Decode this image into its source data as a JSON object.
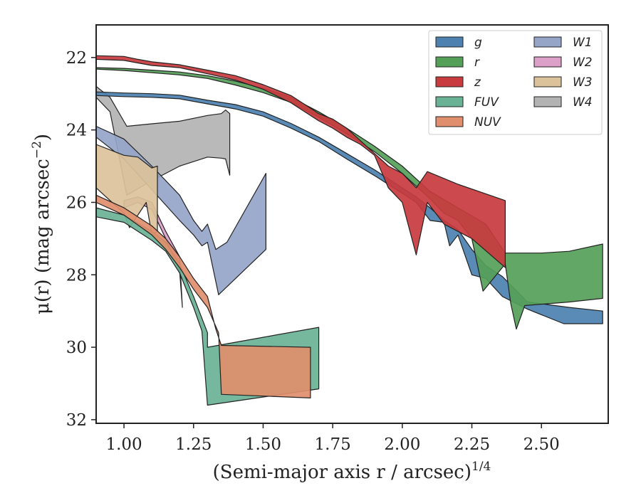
{
  "chart_data": {
    "type": "area",
    "xlabel": "(Semi-major axis r / arcsec)",
    "xlabel_superscript": "1/4",
    "ylabel": "μ(r) (mag arcsec",
    "ylabel_superscript": "−2",
    "ylabel_close": ")",
    "xlim": [
      0.9,
      2.74
    ],
    "ylim": [
      32.1,
      21.1
    ],
    "y_inverted": true,
    "grid": false,
    "legend_position": "top-right",
    "legend_columns": 2,
    "xticks": [
      1.0,
      1.25,
      1.5,
      1.75,
      2.0,
      2.25,
      2.5
    ],
    "xtick_labels": [
      "1.00",
      "1.25",
      "1.50",
      "1.75",
      "2.00",
      "2.25",
      "2.50"
    ],
    "yticks": [
      22,
      24,
      26,
      28,
      30,
      32
    ],
    "ytick_labels": [
      "22",
      "24",
      "26",
      "28",
      "30",
      "32"
    ],
    "series": [
      {
        "name": "W4",
        "color": "#b3b3b3",
        "upper": [
          [
            0.9,
            22.8
          ],
          [
            0.95,
            23.1
          ],
          [
            1.01,
            23.9
          ],
          [
            1.1,
            23.83
          ],
          [
            1.2,
            23.76
          ],
          [
            1.3,
            23.6
          ],
          [
            1.35,
            23.55
          ],
          [
            1.365,
            23.45
          ],
          [
            1.38,
            23.55
          ]
        ],
        "lower": [
          [
            0.9,
            23.1
          ],
          [
            0.95,
            23.5
          ],
          [
            1.01,
            25.8
          ],
          [
            1.1,
            25.4
          ],
          [
            1.2,
            25.0
          ],
          [
            1.3,
            24.75
          ],
          [
            1.35,
            24.78
          ],
          [
            1.365,
            24.8
          ],
          [
            1.38,
            25.25
          ]
        ]
      },
      {
        "name": "g",
        "color": "#4c81b0",
        "upper": [
          [
            0.9,
            22.95
          ],
          [
            1.0,
            22.98
          ],
          [
            1.1,
            23.0
          ],
          [
            1.2,
            23.04
          ],
          [
            1.3,
            23.18
          ],
          [
            1.4,
            23.3
          ],
          [
            1.5,
            23.5
          ],
          [
            1.6,
            23.82
          ],
          [
            1.7,
            24.2
          ],
          [
            1.8,
            24.65
          ],
          [
            1.9,
            25.1
          ],
          [
            2.0,
            25.6
          ],
          [
            2.05,
            25.85
          ],
          [
            2.1,
            26.15
          ],
          [
            2.15,
            26.5
          ],
          [
            2.2,
            26.75
          ],
          [
            2.25,
            27.3
          ],
          [
            2.3,
            27.75
          ],
          [
            2.36,
            28.05
          ],
          [
            2.45,
            28.75
          ],
          [
            2.6,
            28.9
          ],
          [
            2.72,
            29.0
          ]
        ],
        "lower": [
          [
            0.9,
            23.05
          ],
          [
            1.0,
            23.08
          ],
          [
            1.1,
            23.1
          ],
          [
            1.2,
            23.14
          ],
          [
            1.3,
            23.28
          ],
          [
            1.4,
            23.42
          ],
          [
            1.5,
            23.62
          ],
          [
            1.6,
            23.95
          ],
          [
            1.7,
            24.32
          ],
          [
            1.8,
            24.8
          ],
          [
            1.9,
            25.26
          ],
          [
            2.0,
            25.75
          ],
          [
            2.05,
            26.0
          ],
          [
            2.1,
            26.5
          ],
          [
            2.15,
            26.55
          ],
          [
            2.17,
            27.2
          ],
          [
            2.2,
            26.9
          ],
          [
            2.25,
            28.0
          ],
          [
            2.3,
            28.1
          ],
          [
            2.36,
            28.6
          ],
          [
            2.45,
            28.95
          ],
          [
            2.58,
            29.35
          ],
          [
            2.72,
            29.35
          ]
        ]
      },
      {
        "name": "r",
        "color": "#55a058",
        "upper": [
          [
            0.9,
            22.28
          ],
          [
            1.0,
            22.3
          ],
          [
            1.1,
            22.35
          ],
          [
            1.2,
            22.4
          ],
          [
            1.3,
            22.5
          ],
          [
            1.4,
            22.65
          ],
          [
            1.5,
            22.85
          ],
          [
            1.6,
            23.1
          ],
          [
            1.7,
            23.5
          ],
          [
            1.8,
            23.95
          ],
          [
            1.9,
            24.45
          ],
          [
            2.0,
            25.0
          ],
          [
            2.1,
            25.7
          ],
          [
            2.2,
            26.15
          ],
          [
            2.3,
            26.6
          ],
          [
            2.37,
            27.4
          ],
          [
            2.5,
            27.4
          ],
          [
            2.6,
            27.35
          ],
          [
            2.72,
            27.15
          ]
        ],
        "lower": [
          [
            0.9,
            22.32
          ],
          [
            1.0,
            22.36
          ],
          [
            1.1,
            22.42
          ],
          [
            1.2,
            22.48
          ],
          [
            1.3,
            22.58
          ],
          [
            1.4,
            22.76
          ],
          [
            1.5,
            22.97
          ],
          [
            1.6,
            23.24
          ],
          [
            1.7,
            23.65
          ],
          [
            1.8,
            24.1
          ],
          [
            1.9,
            24.6
          ],
          [
            2.0,
            25.2
          ],
          [
            2.1,
            25.9
          ],
          [
            2.15,
            26.3
          ],
          [
            2.2,
            26.5
          ],
          [
            2.25,
            27.0
          ],
          [
            2.29,
            28.45
          ],
          [
            2.37,
            27.7
          ],
          [
            2.39,
            28.8
          ],
          [
            2.41,
            29.5
          ],
          [
            2.44,
            28.85
          ],
          [
            2.6,
            28.75
          ],
          [
            2.72,
            28.65
          ]
        ]
      },
      {
        "name": "z",
        "color": "#c83b3e",
        "upper": [
          [
            0.9,
            21.95
          ],
          [
            1.0,
            21.97
          ],
          [
            1.05,
            22.05
          ],
          [
            1.1,
            22.12
          ],
          [
            1.2,
            22.2
          ],
          [
            1.3,
            22.35
          ],
          [
            1.4,
            22.5
          ],
          [
            1.5,
            22.75
          ],
          [
            1.6,
            23.05
          ],
          [
            1.65,
            23.3
          ],
          [
            1.7,
            23.55
          ],
          [
            1.75,
            23.7
          ],
          [
            1.8,
            23.95
          ],
          [
            1.85,
            24.3
          ],
          [
            1.9,
            24.65
          ],
          [
            1.95,
            25.0
          ],
          [
            2.0,
            25.2
          ],
          [
            2.05,
            25.6
          ],
          [
            2.09,
            25.15
          ],
          [
            2.2,
            25.5
          ],
          [
            2.37,
            25.95
          ],
          [
            2.37,
            27.8
          ]
        ],
        "lower": [
          [
            0.9,
            22.05
          ],
          [
            1.0,
            22.08
          ],
          [
            1.05,
            22.15
          ],
          [
            1.1,
            22.22
          ],
          [
            1.2,
            22.28
          ],
          [
            1.3,
            22.45
          ],
          [
            1.4,
            22.62
          ],
          [
            1.5,
            22.88
          ],
          [
            1.6,
            23.25
          ],
          [
            1.65,
            23.5
          ],
          [
            1.7,
            23.75
          ],
          [
            1.75,
            23.95
          ],
          [
            1.8,
            24.2
          ],
          [
            1.85,
            24.4
          ],
          [
            1.9,
            24.7
          ],
          [
            1.95,
            25.6
          ],
          [
            2.0,
            26.0
          ],
          [
            2.05,
            27.45
          ],
          [
            2.09,
            26.0
          ],
          [
            2.15,
            26.6
          ],
          [
            2.25,
            27.0
          ],
          [
            2.37,
            27.8
          ]
        ]
      },
      {
        "name": "W1",
        "color": "#95a5c8",
        "upper": [
          [
            0.9,
            23.9
          ],
          [
            1.0,
            24.25
          ],
          [
            1.1,
            25.0
          ],
          [
            1.2,
            25.8
          ],
          [
            1.25,
            26.5
          ],
          [
            1.28,
            26.8
          ],
          [
            1.3,
            26.6
          ],
          [
            1.33,
            27.3
          ],
          [
            1.37,
            27.1
          ],
          [
            1.51,
            25.2
          ]
        ],
        "lower": [
          [
            0.9,
            24.2
          ],
          [
            1.0,
            24.8
          ],
          [
            1.1,
            25.65
          ],
          [
            1.2,
            26.5
          ],
          [
            1.25,
            26.9
          ],
          [
            1.28,
            27.2
          ],
          [
            1.3,
            27.1
          ],
          [
            1.34,
            28.55
          ],
          [
            1.51,
            27.3
          ]
        ]
      },
      {
        "name": "W2",
        "color": "#db9fc8",
        "upper": [
          [
            1.0,
            25.95
          ],
          [
            1.05,
            25.85
          ],
          [
            1.1,
            26.0
          ],
          [
            1.15,
            26.8
          ],
          [
            1.2,
            27.5
          ],
          [
            1.21,
            28.9
          ]
        ],
        "lower": [
          [
            1.0,
            26.15
          ],
          [
            1.05,
            26.0
          ],
          [
            1.1,
            26.2
          ],
          [
            1.15,
            27.0
          ],
          [
            1.2,
            27.9
          ],
          [
            1.21,
            28.9
          ]
        ]
      },
      {
        "name": "W3",
        "color": "#dbc29a",
        "upper": [
          [
            0.9,
            24.4
          ],
          [
            1.0,
            24.7
          ],
          [
            1.05,
            24.75
          ],
          [
            1.1,
            25.05
          ],
          [
            1.12,
            25.0
          ]
        ],
        "lower": [
          [
            0.9,
            25.6
          ],
          [
            1.0,
            26.3
          ],
          [
            1.02,
            26.7
          ],
          [
            1.08,
            26.0
          ],
          [
            1.1,
            26.9
          ],
          [
            1.12,
            26.8
          ]
        ]
      },
      {
        "name": "FUV",
        "color": "#69b296",
        "upper": [
          [
            0.9,
            26.15
          ],
          [
            1.0,
            26.35
          ],
          [
            1.1,
            26.8
          ],
          [
            1.15,
            27.1
          ],
          [
            1.2,
            27.7
          ],
          [
            1.25,
            28.6
          ],
          [
            1.3,
            29.6
          ],
          [
            1.3,
            30.0
          ],
          [
            1.7,
            29.45
          ]
        ],
        "lower": [
          [
            0.9,
            26.4
          ],
          [
            1.0,
            26.55
          ],
          [
            1.1,
            27.05
          ],
          [
            1.15,
            27.35
          ],
          [
            1.2,
            27.95
          ],
          [
            1.25,
            28.9
          ],
          [
            1.28,
            29.55
          ],
          [
            1.3,
            31.6
          ],
          [
            1.7,
            31.15
          ]
        ]
      },
      {
        "name": "NUV",
        "color": "#e08f6c",
        "upper": [
          [
            0.9,
            25.8
          ],
          [
            1.0,
            26.15
          ],
          [
            1.1,
            26.65
          ],
          [
            1.15,
            27.0
          ],
          [
            1.2,
            27.5
          ],
          [
            1.25,
            28.1
          ],
          [
            1.3,
            28.6
          ],
          [
            1.33,
            29.5
          ],
          [
            1.35,
            29.95
          ],
          [
            1.67,
            30.0
          ]
        ],
        "lower": [
          [
            0.9,
            26.0
          ],
          [
            1.0,
            26.35
          ],
          [
            1.1,
            26.9
          ],
          [
            1.15,
            27.3
          ],
          [
            1.2,
            27.8
          ],
          [
            1.25,
            28.4
          ],
          [
            1.3,
            28.9
          ],
          [
            1.34,
            29.6
          ],
          [
            1.35,
            31.3
          ],
          [
            1.67,
            31.4
          ]
        ]
      }
    ],
    "legend": [
      {
        "name": "g",
        "color": "#4c81b0"
      },
      {
        "name": "r",
        "color": "#55a058"
      },
      {
        "name": "z",
        "color": "#c83b3e"
      },
      {
        "name": "FUV",
        "color": "#69b296"
      },
      {
        "name": "NUV",
        "color": "#e08f6c"
      },
      {
        "name": "W1",
        "color": "#95a5c8"
      },
      {
        "name": "W2",
        "color": "#db9fc8"
      },
      {
        "name": "W3",
        "color": "#dbc29a"
      },
      {
        "name": "W4",
        "color": "#b3b3b3"
      }
    ]
  }
}
